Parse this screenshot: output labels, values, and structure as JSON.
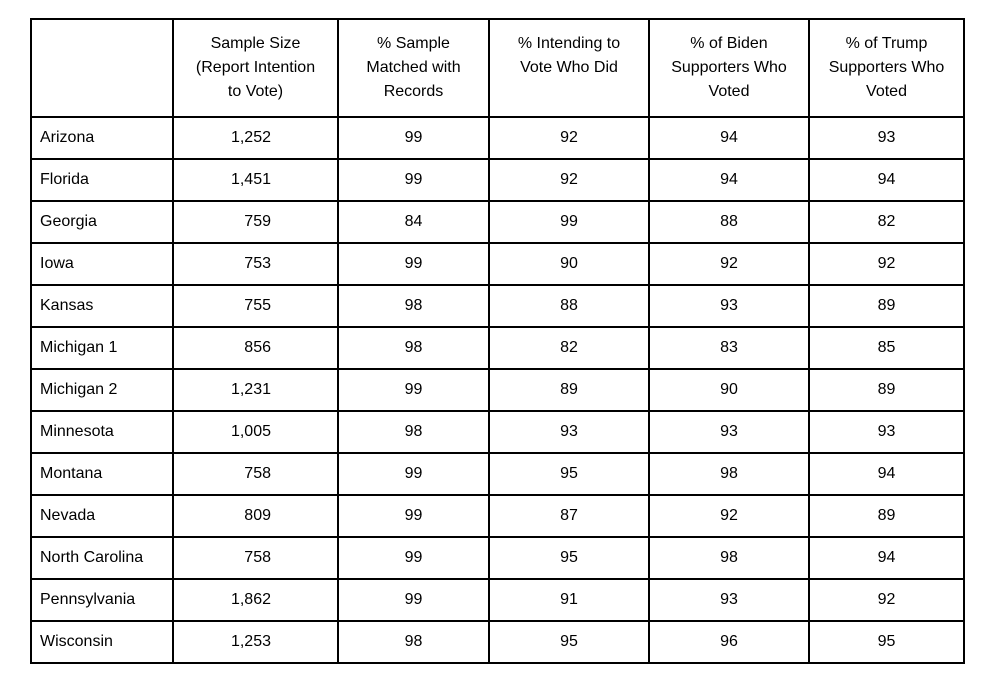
{
  "table": {
    "headers": [
      [
        ""
      ],
      [
        "Sample Size",
        "(Report Intention",
        "to Vote)"
      ],
      [
        "%  Sample",
        "Matched with",
        "Records"
      ],
      [
        "% Intending to",
        "Vote Who Did",
        ""
      ],
      [
        "% of Biden",
        "Supporters Who",
        "Voted"
      ],
      [
        "% of Trump",
        "Supporters Who",
        "Voted"
      ]
    ],
    "rows": [
      [
        "Arizona",
        "1,252",
        "99",
        "92",
        "94",
        "93"
      ],
      [
        "Florida",
        "1,451",
        "99",
        "92",
        "94",
        "94"
      ],
      [
        "Georgia",
        "759",
        "84",
        "99",
        "88",
        "82"
      ],
      [
        "Iowa",
        "753",
        "99",
        "90",
        "92",
        "92"
      ],
      [
        "Kansas",
        "755",
        "98",
        "88",
        "93",
        "89"
      ],
      [
        "Michigan 1",
        "856",
        "98",
        "82",
        "83",
        "85"
      ],
      [
        "Michigan 2",
        "1,231",
        "99",
        "89",
        "90",
        "89"
      ],
      [
        "Minnesota",
        "1,005",
        "98",
        "93",
        "93",
        "93"
      ],
      [
        "Montana",
        "758",
        "99",
        "95",
        "98",
        "94"
      ],
      [
        "Nevada",
        "809",
        "99",
        "87",
        "92",
        "89"
      ],
      [
        "North Carolina",
        "758",
        "99",
        "95",
        "98",
        "94"
      ],
      [
        "Pennsylvania",
        "1,862",
        "99",
        "91",
        "93",
        "92"
      ],
      [
        "Wisconsin",
        "1,253",
        "98",
        "95",
        "96",
        "95"
      ]
    ]
  }
}
